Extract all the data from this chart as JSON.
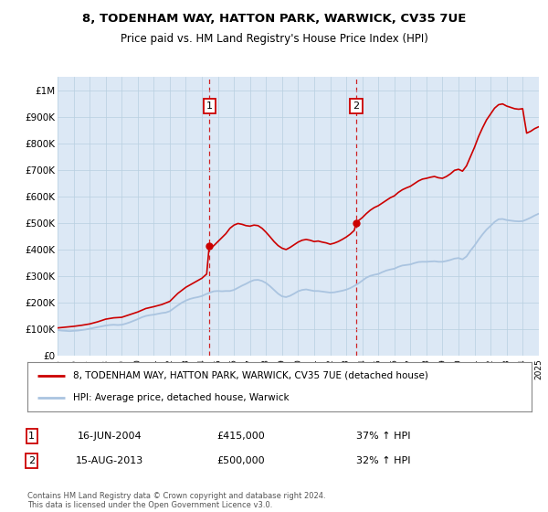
{
  "title": "8, TODENHAM WAY, HATTON PARK, WARWICK, CV35 7UE",
  "subtitle": "Price paid vs. HM Land Registry's House Price Index (HPI)",
  "legend_line1": "8, TODENHAM WAY, HATTON PARK, WARWICK, CV35 7UE (detached house)",
  "legend_line2": "HPI: Average price, detached house, Warwick",
  "annotation1_label": "1",
  "annotation1_date": "16-JUN-2004",
  "annotation1_price": "£415,000",
  "annotation1_hpi": "37% ↑ HPI",
  "annotation1_year": 2004.46,
  "annotation1_value": 415000,
  "annotation2_label": "2",
  "annotation2_date": "15-AUG-2013",
  "annotation2_price": "£500,000",
  "annotation2_hpi": "32% ↑ HPI",
  "annotation2_year": 2013.62,
  "annotation2_value": 500000,
  "hpi_color": "#aac4e0",
  "price_color": "#cc0000",
  "annotation_color": "#cc0000",
  "background_color": "#dce8f5",
  "plot_bg": "#ffffff",
  "ylim": [
    0,
    1050000
  ],
  "yticks": [
    0,
    100000,
    200000,
    300000,
    400000,
    500000,
    600000,
    700000,
    800000,
    900000,
    1000000
  ],
  "ytick_labels": [
    "£0",
    "£100K",
    "£200K",
    "£300K",
    "£400K",
    "£500K",
    "£600K",
    "£700K",
    "£800K",
    "£900K",
    "£1M"
  ],
  "footer": "Contains HM Land Registry data © Crown copyright and database right 2024.\nThis data is licensed under the Open Government Licence v3.0.",
  "hpi_data": [
    [
      1995.0,
      97000
    ],
    [
      1995.25,
      95000
    ],
    [
      1995.5,
      94000
    ],
    [
      1995.75,
      93000
    ],
    [
      1996.0,
      94000
    ],
    [
      1996.25,
      95000
    ],
    [
      1996.5,
      97000
    ],
    [
      1996.75,
      99000
    ],
    [
      1997.0,
      102000
    ],
    [
      1997.25,
      105000
    ],
    [
      1997.5,
      108000
    ],
    [
      1997.75,
      111000
    ],
    [
      1998.0,
      114000
    ],
    [
      1998.25,
      116000
    ],
    [
      1998.5,
      117000
    ],
    [
      1998.75,
      116000
    ],
    [
      1999.0,
      117000
    ],
    [
      1999.25,
      121000
    ],
    [
      1999.5,
      126000
    ],
    [
      1999.75,
      132000
    ],
    [
      2000.0,
      138000
    ],
    [
      2000.25,
      145000
    ],
    [
      2000.5,
      150000
    ],
    [
      2000.75,
      153000
    ],
    [
      2001.0,
      155000
    ],
    [
      2001.25,
      158000
    ],
    [
      2001.5,
      161000
    ],
    [
      2001.75,
      163000
    ],
    [
      2002.0,
      168000
    ],
    [
      2002.25,
      179000
    ],
    [
      2002.5,
      190000
    ],
    [
      2002.75,
      200000
    ],
    [
      2003.0,
      208000
    ],
    [
      2003.25,
      214000
    ],
    [
      2003.5,
      218000
    ],
    [
      2003.75,
      221000
    ],
    [
      2004.0,
      225000
    ],
    [
      2004.25,
      232000
    ],
    [
      2004.5,
      238000
    ],
    [
      2004.75,
      243000
    ],
    [
      2005.0,
      244000
    ],
    [
      2005.25,
      243000
    ],
    [
      2005.5,
      244000
    ],
    [
      2005.75,
      244000
    ],
    [
      2006.0,
      248000
    ],
    [
      2006.25,
      256000
    ],
    [
      2006.5,
      264000
    ],
    [
      2006.75,
      271000
    ],
    [
      2007.0,
      279000
    ],
    [
      2007.25,
      285000
    ],
    [
      2007.5,
      286000
    ],
    [
      2007.75,
      282000
    ],
    [
      2008.0,
      274000
    ],
    [
      2008.25,
      262000
    ],
    [
      2008.5,
      248000
    ],
    [
      2008.75,
      234000
    ],
    [
      2009.0,
      224000
    ],
    [
      2009.25,
      221000
    ],
    [
      2009.5,
      226000
    ],
    [
      2009.75,
      234000
    ],
    [
      2010.0,
      243000
    ],
    [
      2010.25,
      248000
    ],
    [
      2010.5,
      250000
    ],
    [
      2010.75,
      247000
    ],
    [
      2011.0,
      244000
    ],
    [
      2011.25,
      244000
    ],
    [
      2011.5,
      242000
    ],
    [
      2011.75,
      240000
    ],
    [
      2012.0,
      238000
    ],
    [
      2012.25,
      239000
    ],
    [
      2012.5,
      242000
    ],
    [
      2012.75,
      245000
    ],
    [
      2013.0,
      249000
    ],
    [
      2013.25,
      255000
    ],
    [
      2013.5,
      263000
    ],
    [
      2013.75,
      272000
    ],
    [
      2014.0,
      283000
    ],
    [
      2014.25,
      294000
    ],
    [
      2014.5,
      301000
    ],
    [
      2014.75,
      305000
    ],
    [
      2015.0,
      308000
    ],
    [
      2015.25,
      315000
    ],
    [
      2015.5,
      321000
    ],
    [
      2015.75,
      325000
    ],
    [
      2016.0,
      328000
    ],
    [
      2016.25,
      335000
    ],
    [
      2016.5,
      340000
    ],
    [
      2016.75,
      342000
    ],
    [
      2017.0,
      344000
    ],
    [
      2017.25,
      349000
    ],
    [
      2017.5,
      353000
    ],
    [
      2017.75,
      354000
    ],
    [
      2018.0,
      354000
    ],
    [
      2018.25,
      355000
    ],
    [
      2018.5,
      356000
    ],
    [
      2018.75,
      354000
    ],
    [
      2019.0,
      354000
    ],
    [
      2019.25,
      357000
    ],
    [
      2019.5,
      361000
    ],
    [
      2019.75,
      366000
    ],
    [
      2020.0,
      368000
    ],
    [
      2020.25,
      363000
    ],
    [
      2020.5,
      374000
    ],
    [
      2020.75,
      396000
    ],
    [
      2021.0,
      415000
    ],
    [
      2021.25,
      437000
    ],
    [
      2021.5,
      457000
    ],
    [
      2021.75,
      475000
    ],
    [
      2022.0,
      489000
    ],
    [
      2022.25,
      504000
    ],
    [
      2022.5,
      514000
    ],
    [
      2022.75,
      515000
    ],
    [
      2023.0,
      511000
    ],
    [
      2023.25,
      509000
    ],
    [
      2023.5,
      507000
    ],
    [
      2023.75,
      506000
    ],
    [
      2024.0,
      507000
    ],
    [
      2024.25,
      513000
    ],
    [
      2024.5,
      520000
    ],
    [
      2024.75,
      528000
    ],
    [
      2025.0,
      535000
    ]
  ],
  "price_data": [
    [
      1995.0,
      105000
    ],
    [
      1995.5,
      108000
    ],
    [
      1996.0,
      111000
    ],
    [
      1996.5,
      115000
    ],
    [
      1997.0,
      120000
    ],
    [
      1997.5,
      128000
    ],
    [
      1998.0,
      138000
    ],
    [
      1998.5,
      143000
    ],
    [
      1999.0,
      145000
    ],
    [
      1999.5,
      155000
    ],
    [
      2000.0,
      165000
    ],
    [
      2000.5,
      178000
    ],
    [
      2001.0,
      185000
    ],
    [
      2001.5,
      193000
    ],
    [
      2002.0,
      205000
    ],
    [
      2002.5,
      235000
    ],
    [
      2003.0,
      258000
    ],
    [
      2003.5,
      275000
    ],
    [
      2004.0,
      292000
    ],
    [
      2004.3,
      308000
    ],
    [
      2004.46,
      415000
    ],
    [
      2004.6,
      408000
    ],
    [
      2004.75,
      415000
    ],
    [
      2005.0,
      430000
    ],
    [
      2005.25,
      445000
    ],
    [
      2005.5,
      460000
    ],
    [
      2005.75,
      480000
    ],
    [
      2006.0,
      492000
    ],
    [
      2006.25,
      498000
    ],
    [
      2006.5,
      495000
    ],
    [
      2006.75,
      490000
    ],
    [
      2007.0,
      488000
    ],
    [
      2007.25,
      492000
    ],
    [
      2007.5,
      490000
    ],
    [
      2007.75,
      480000
    ],
    [
      2008.0,
      465000
    ],
    [
      2008.25,
      448000
    ],
    [
      2008.5,
      430000
    ],
    [
      2008.75,
      415000
    ],
    [
      2009.0,
      405000
    ],
    [
      2009.25,
      400000
    ],
    [
      2009.5,
      408000
    ],
    [
      2009.75,
      418000
    ],
    [
      2010.0,
      428000
    ],
    [
      2010.25,
      435000
    ],
    [
      2010.5,
      438000
    ],
    [
      2010.75,
      435000
    ],
    [
      2011.0,
      430000
    ],
    [
      2011.25,
      432000
    ],
    [
      2011.5,
      428000
    ],
    [
      2011.75,
      425000
    ],
    [
      2012.0,
      420000
    ],
    [
      2012.25,
      424000
    ],
    [
      2012.5,
      430000
    ],
    [
      2012.75,
      438000
    ],
    [
      2013.0,
      447000
    ],
    [
      2013.25,
      458000
    ],
    [
      2013.5,
      472000
    ],
    [
      2013.62,
      500000
    ],
    [
      2013.75,
      508000
    ],
    [
      2014.0,
      520000
    ],
    [
      2014.25,
      535000
    ],
    [
      2014.5,
      548000
    ],
    [
      2014.75,
      558000
    ],
    [
      2015.0,
      565000
    ],
    [
      2015.25,
      575000
    ],
    [
      2015.5,
      585000
    ],
    [
      2015.75,
      595000
    ],
    [
      2016.0,
      602000
    ],
    [
      2016.25,
      615000
    ],
    [
      2016.5,
      625000
    ],
    [
      2016.75,
      632000
    ],
    [
      2017.0,
      638000
    ],
    [
      2017.25,
      648000
    ],
    [
      2017.5,
      658000
    ],
    [
      2017.75,
      665000
    ],
    [
      2018.0,
      668000
    ],
    [
      2018.25,
      672000
    ],
    [
      2018.5,
      675000
    ],
    [
      2018.75,
      670000
    ],
    [
      2019.0,
      668000
    ],
    [
      2019.25,
      675000
    ],
    [
      2019.5,
      685000
    ],
    [
      2019.75,
      698000
    ],
    [
      2020.0,
      702000
    ],
    [
      2020.25,
      695000
    ],
    [
      2020.5,
      715000
    ],
    [
      2020.75,
      750000
    ],
    [
      2021.0,
      785000
    ],
    [
      2021.25,
      825000
    ],
    [
      2021.5,
      858000
    ],
    [
      2021.75,
      888000
    ],
    [
      2022.0,
      910000
    ],
    [
      2022.25,
      932000
    ],
    [
      2022.5,
      945000
    ],
    [
      2022.75,
      948000
    ],
    [
      2023.0,
      940000
    ],
    [
      2023.25,
      935000
    ],
    [
      2023.5,
      930000
    ],
    [
      2023.75,
      928000
    ],
    [
      2024.0,
      930000
    ],
    [
      2024.25,
      838000
    ],
    [
      2024.5,
      845000
    ],
    [
      2024.75,
      855000
    ],
    [
      2025.0,
      862000
    ]
  ]
}
